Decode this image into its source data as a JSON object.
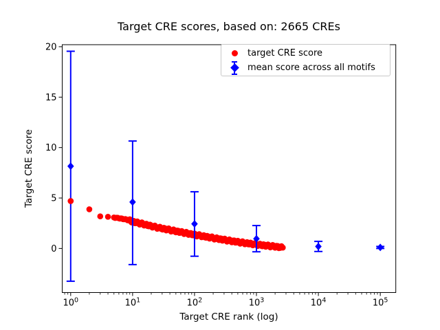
{
  "title": "Target CRE scores, based on: 2665 CREs",
  "axes": {
    "xlabel": "Target CRE rank (log)",
    "ylabel": "Target CRE score",
    "x_tick_base": "10",
    "x_tick_exponents": [
      0,
      1,
      2,
      3,
      4,
      5
    ],
    "y_ticks": [
      0,
      5,
      10,
      15,
      20
    ]
  },
  "legend": {
    "items": [
      {
        "label": "target CRE score",
        "marker": "red-circle",
        "color": "#ff0000"
      },
      {
        "label": "mean score across all motifs",
        "marker": "blue-diamond-errorbar",
        "color": "#0000ff"
      }
    ]
  },
  "colors": {
    "scatter": "#ff0000",
    "errorbar": "#0000ff",
    "axis": "#000000",
    "legend_border": "#c8c8c8",
    "background": "#ffffff"
  },
  "chart_data": {
    "type": "scatter",
    "title": "Target CRE scores, based on: 2665 CREs",
    "xlabel": "Target CRE rank (log)",
    "ylabel": "Target CRE score",
    "x_scale": "log",
    "xlim": [
      0.73,
      178000
    ],
    "ylim": [
      -4.37,
      20.2
    ],
    "grid": false,
    "legend_position": "upper right",
    "series": [
      {
        "name": "target CRE score",
        "type": "scatter",
        "marker": "circle",
        "color": "#ff0000",
        "n_total_points": 2665,
        "dense_from_x": 5,
        "points": [
          [
            1,
            4.7
          ],
          [
            2,
            3.88
          ],
          [
            3,
            3.18
          ],
          [
            4,
            3.14
          ],
          [
            5,
            3.07
          ],
          [
            6,
            3.0
          ],
          [
            7,
            2.93
          ],
          [
            8,
            2.86
          ],
          [
            9,
            2.76
          ],
          [
            10,
            2.66
          ],
          [
            13,
            2.5
          ],
          [
            16,
            2.37
          ],
          [
            20,
            2.22
          ],
          [
            25,
            2.08
          ],
          [
            32,
            1.95
          ],
          [
            40,
            1.83
          ],
          [
            50,
            1.71
          ],
          [
            65,
            1.58
          ],
          [
            80,
            1.47
          ],
          [
            100,
            1.36
          ],
          [
            130,
            1.24
          ],
          [
            160,
            1.14
          ],
          [
            200,
            1.04
          ],
          [
            260,
            0.92
          ],
          [
            320,
            0.83
          ],
          [
            400,
            0.73
          ],
          [
            500,
            0.64
          ],
          [
            650,
            0.54
          ],
          [
            800,
            0.47
          ],
          [
            1000,
            0.39
          ],
          [
            1300,
            0.31
          ],
          [
            1600,
            0.25
          ],
          [
            2000,
            0.19
          ],
          [
            2300,
            0.14
          ],
          [
            2665,
            0.08
          ]
        ]
      },
      {
        "name": "mean score across all motifs",
        "type": "errorbar",
        "marker": "diamond",
        "color": "#0000ff",
        "points": [
          {
            "x": 1,
            "y": 8.15,
            "ylo": -3.25,
            "yhi": 19.55
          },
          {
            "x": 10,
            "y": 4.6,
            "ylo": -1.6,
            "yhi": 10.65
          },
          {
            "x": 100,
            "y": 2.44,
            "ylo": -0.77,
            "yhi": 5.62
          },
          {
            "x": 1000,
            "y": 0.96,
            "ylo": -0.33,
            "yhi": 2.27
          },
          {
            "x": 10000,
            "y": 0.2,
            "ylo": -0.3,
            "yhi": 0.7
          },
          {
            "x": 100000,
            "y": 0.1,
            "ylo": 0.0,
            "yhi": 0.2
          }
        ]
      }
    ]
  }
}
